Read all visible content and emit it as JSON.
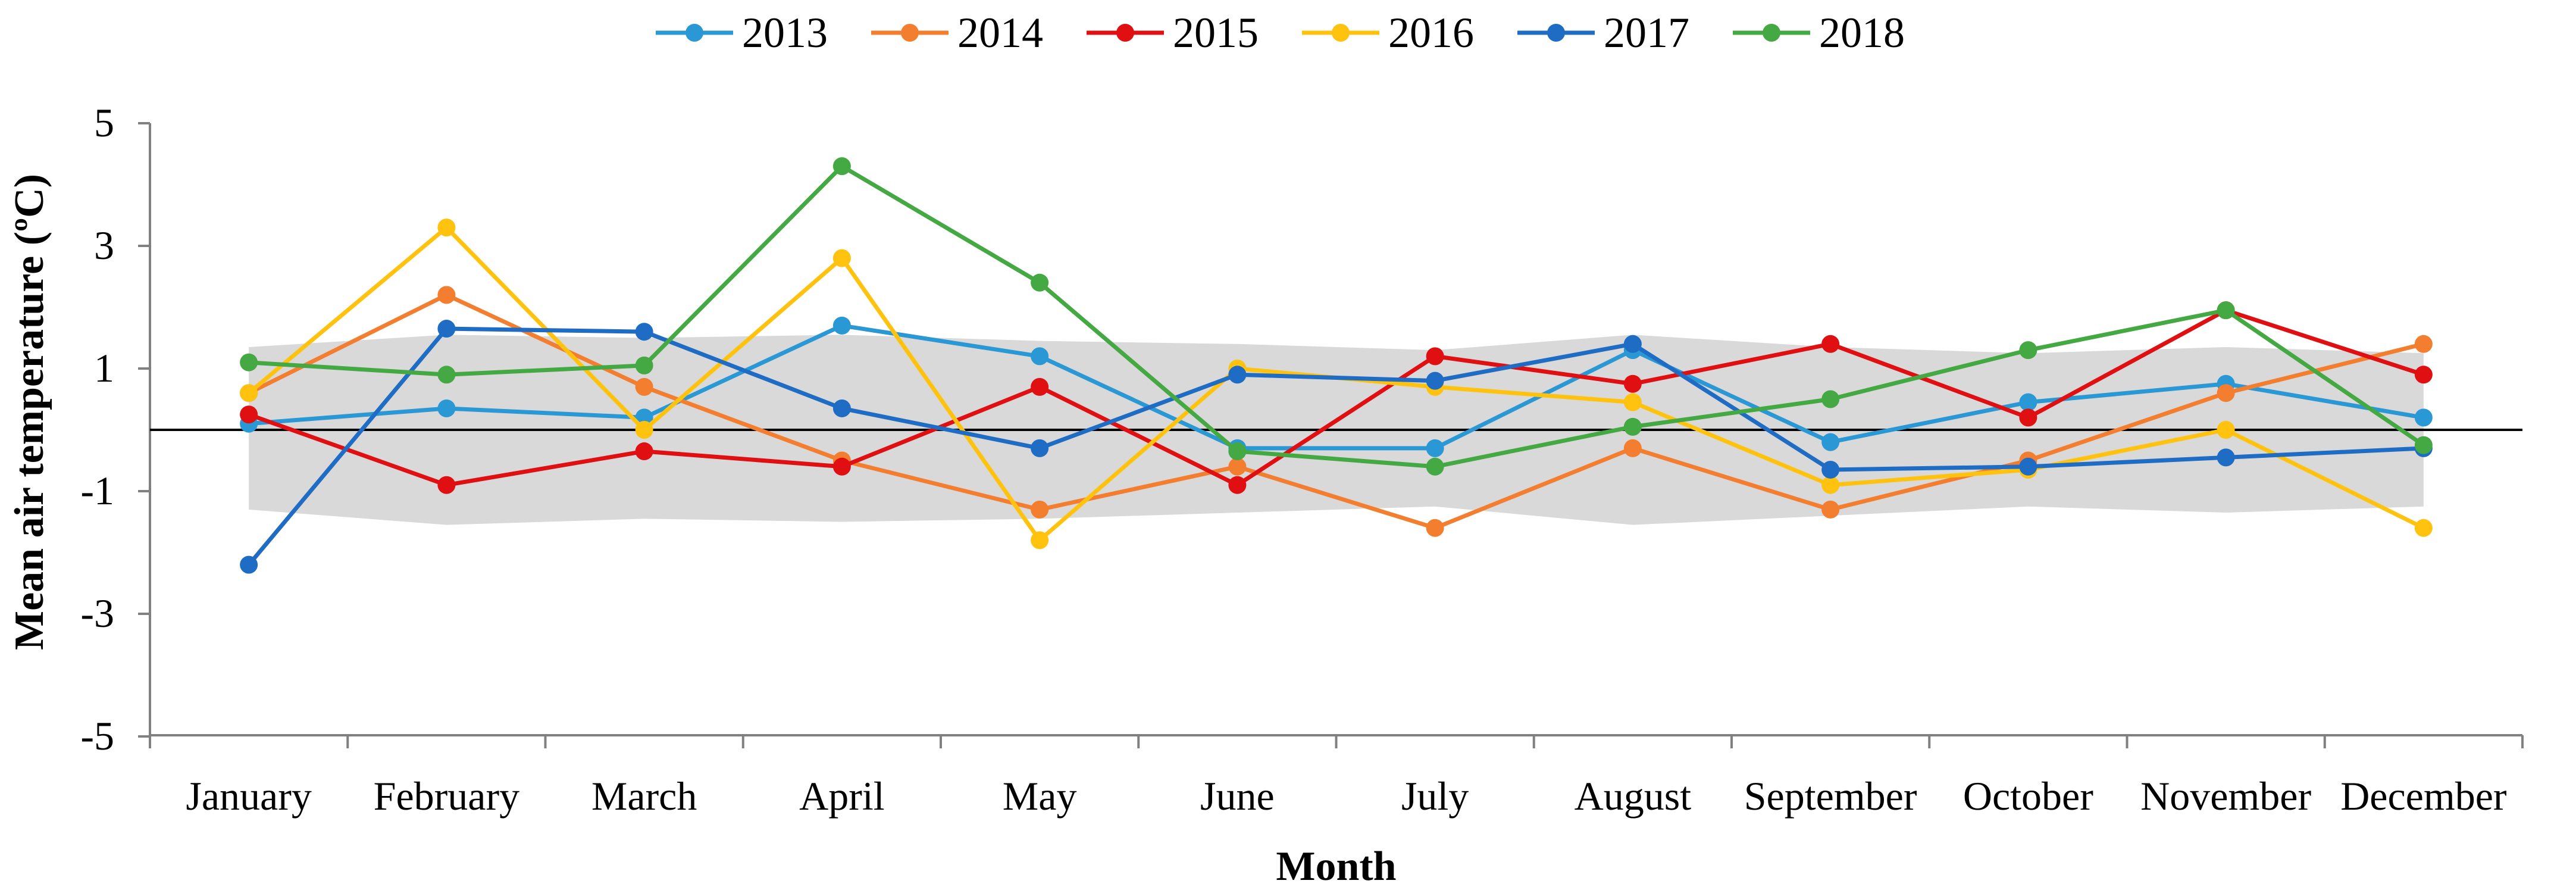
{
  "chart_data": {
    "type": "line",
    "title": "",
    "xlabel": "Month",
    "ylabel": "Mean air temperature (ºC)",
    "ylim": [
      -5,
      5
    ],
    "yticks": [
      5,
      3,
      1,
      -1,
      -3,
      -5
    ],
    "ytick_labels": [
      "5",
      "3",
      "1",
      "-1",
      "-3",
      "-5"
    ],
    "categories": [
      "January",
      "February",
      "March",
      "April",
      "May",
      "June",
      "July",
      "August",
      "September",
      "October",
      "November",
      "December"
    ],
    "legend_position": "top",
    "reference_line": 0,
    "band": {
      "upper": [
        1.35,
        1.55,
        1.5,
        1.55,
        1.45,
        1.4,
        1.3,
        1.55,
        1.35,
        1.25,
        1.35,
        1.25
      ],
      "lower": [
        -1.3,
        -1.55,
        -1.45,
        -1.5,
        -1.45,
        -1.35,
        -1.25,
        -1.55,
        -1.4,
        -1.25,
        -1.35,
        -1.25
      ],
      "color": "#d9d9d9"
    },
    "series": [
      {
        "name": "2013",
        "color": "#2a98d4",
        "values": [
          0.1,
          0.35,
          0.2,
          1.7,
          1.2,
          -0.3,
          -0.3,
          1.3,
          -0.2,
          0.45,
          0.75,
          0.2
        ]
      },
      {
        "name": "2014",
        "color": "#f47e2f",
        "values": [
          0.6,
          2.2,
          0.7,
          -0.5,
          -1.3,
          -0.6,
          -1.6,
          -0.3,
          -1.3,
          -0.5,
          0.6,
          1.4
        ]
      },
      {
        "name": "2015",
        "color": "#e00f12",
        "values": [
          0.25,
          -0.9,
          -0.35,
          -0.6,
          0.7,
          -0.9,
          1.2,
          0.75,
          1.4,
          0.2,
          1.95,
          0.9
        ]
      },
      {
        "name": "2016",
        "color": "#ffc20e",
        "values": [
          0.6,
          3.3,
          0.0,
          2.8,
          -1.8,
          1.0,
          0.7,
          0.45,
          -0.9,
          -0.65,
          0.0,
          -1.6
        ]
      },
      {
        "name": "2017",
        "color": "#1f6cc5",
        "values": [
          -2.2,
          1.65,
          1.6,
          0.35,
          -0.3,
          0.9,
          0.8,
          1.4,
          -0.65,
          -0.6,
          -0.45,
          -0.3
        ]
      },
      {
        "name": "2018",
        "color": "#44a843",
        "values": [
          1.1,
          0.9,
          1.05,
          4.3,
          2.4,
          -0.35,
          -0.6,
          0.05,
          0.5,
          1.3,
          1.95,
          -0.25
        ]
      }
    ]
  }
}
